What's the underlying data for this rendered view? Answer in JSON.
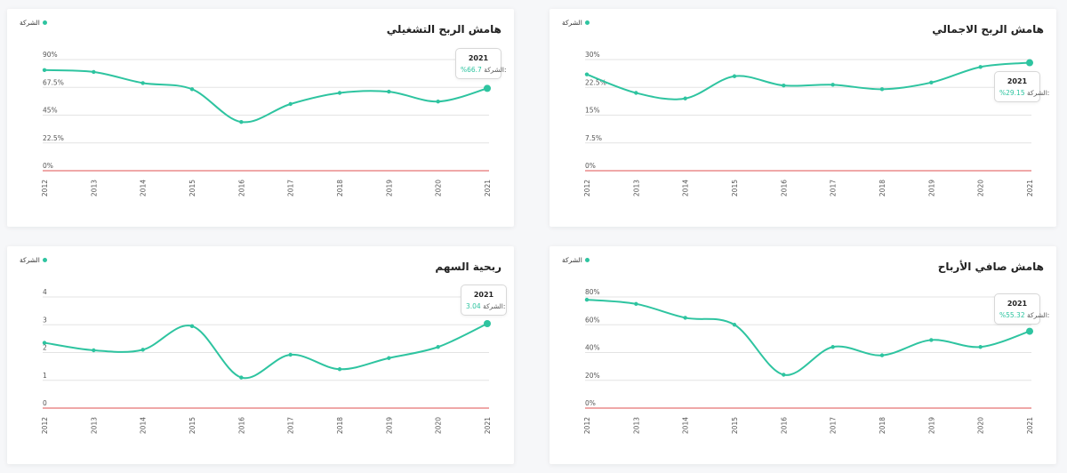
{
  "colors": {
    "series": "#2ec4a0",
    "zero_line": "#e57373",
    "grid": "#e3e3e3"
  },
  "charts": [
    {
      "id": "operating-margin",
      "title": "هامش الربح التشغيلي",
      "legend": "الشركة",
      "tooltip": {
        "year": "2021",
        "label": "الشركة:",
        "value": "%66.7"
      },
      "chart_data": {
        "type": "line",
        "x": [
          "2012",
          "2013",
          "2014",
          "2015",
          "2016",
          "2017",
          "2018",
          "2019",
          "2020",
          "2021"
        ],
        "series": [
          {
            "name": "الشركة",
            "values": [
              81.5,
              80,
              71,
              66,
              39.5,
              54,
              63,
              64,
              56,
              66.7
            ]
          }
        ],
        "ylim": [
          0,
          90
        ],
        "yticks": [
          0,
          22.5,
          45,
          67.5,
          90
        ],
        "ytick_labels": [
          "0%",
          "22.5%",
          "45%",
          "67.5%",
          "90%"
        ]
      }
    },
    {
      "id": "gross-margin",
      "title": "هامش الربح الاجمالي",
      "legend": "الشركة",
      "tooltip": {
        "year": "2021",
        "label": "الشركة:",
        "value": "%29.15"
      },
      "chart_data": {
        "type": "line",
        "x": [
          "2012",
          "2013",
          "2014",
          "2015",
          "2016",
          "2017",
          "2018",
          "2019",
          "2020",
          "2021"
        ],
        "series": [
          {
            "name": "الشركة",
            "values": [
              26,
              21,
              19.5,
              25.5,
              23,
              23.2,
              22,
              23.8,
              28,
              29.15
            ]
          }
        ],
        "ylim": [
          0,
          30
        ],
        "yticks": [
          0,
          7.5,
          15,
          22.5,
          30
        ],
        "ytick_labels": [
          "0%",
          "7.5%",
          "15%",
          "22.5%",
          "30%"
        ]
      }
    },
    {
      "id": "eps",
      "title": "ربحية السهم",
      "legend": "الشركة",
      "tooltip": {
        "year": "2021",
        "label": "الشركة:",
        "value": "3.04"
      },
      "chart_data": {
        "type": "line",
        "x": [
          "2012",
          "2013",
          "2014",
          "2015",
          "2016",
          "2017",
          "2018",
          "2019",
          "2020",
          "2021"
        ],
        "series": [
          {
            "name": "الشركة",
            "values": [
              2.35,
              2.08,
              2.1,
              2.95,
              1.1,
              1.92,
              1.4,
              1.8,
              2.2,
              3.04
            ]
          }
        ],
        "ylim": [
          0,
          4
        ],
        "yticks": [
          0,
          1,
          2,
          3,
          4
        ],
        "ytick_labels": [
          "0",
          "1",
          "2",
          "3",
          "4"
        ]
      }
    },
    {
      "id": "net-margin",
      "title": "هامش صافي الأرباح",
      "legend": "الشركة",
      "tooltip": {
        "year": "2021",
        "label": "الشركة:",
        "value": "%55.32"
      },
      "chart_data": {
        "type": "line",
        "x": [
          "2012",
          "2013",
          "2014",
          "2015",
          "2016",
          "2017",
          "2018",
          "2019",
          "2020",
          "2021"
        ],
        "series": [
          {
            "name": "الشركة",
            "values": [
              78,
              75,
              65,
              60,
              24,
              44,
              38,
              49,
              44,
              55.32
            ]
          }
        ],
        "ylim": [
          0,
          80
        ],
        "yticks": [
          0,
          20,
          40,
          60,
          80
        ],
        "ytick_labels": [
          "0%",
          "20%",
          "40%",
          "60%",
          "80%"
        ]
      }
    }
  ]
}
